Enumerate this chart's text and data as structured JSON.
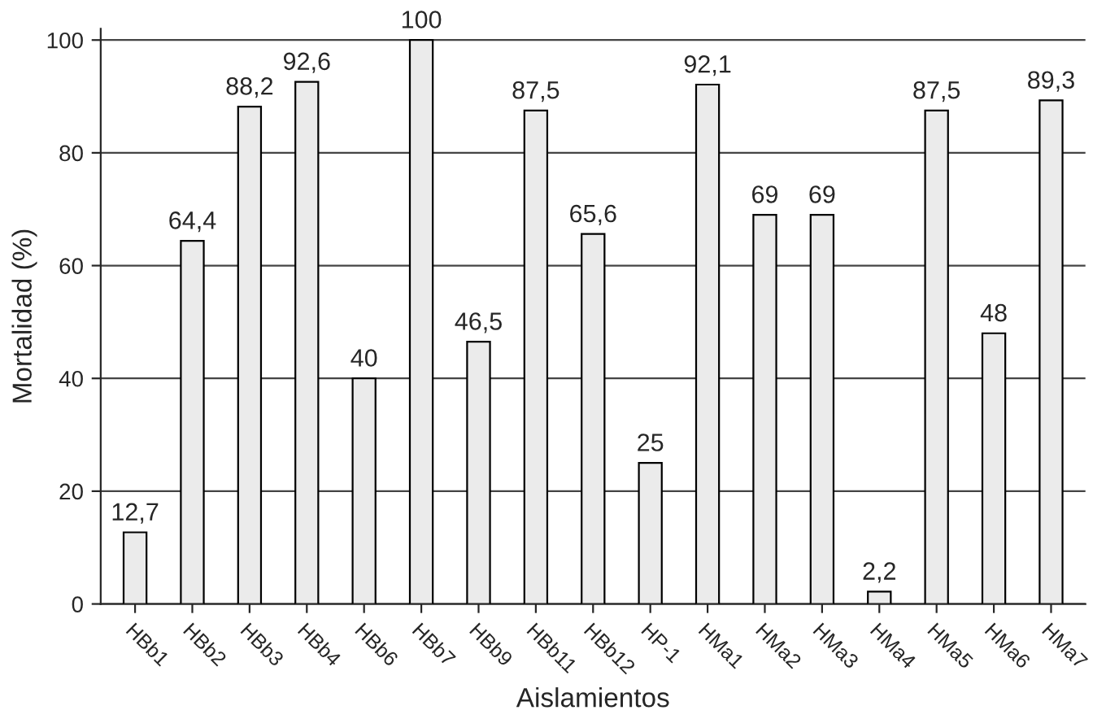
{
  "chart_data": {
    "type": "bar",
    "xlabel": "Aislamientos",
    "ylabel": "Mortalidad (%)",
    "categories": [
      "HBb1",
      "HBb2",
      "HBb3",
      "HBb4",
      "HBb6",
      "HBb7",
      "HBb9",
      "HBb11",
      "HBb12",
      "HP-1",
      "HMa1",
      "HMa2",
      "HMa3",
      "HMa4",
      "HMa5",
      "HMa6",
      "HMa7"
    ],
    "values": [
      12.7,
      64.4,
      88.2,
      92.6,
      40,
      100,
      46.5,
      87.5,
      65.6,
      25,
      92.1,
      69,
      69,
      2.2,
      87.5,
      48,
      89.3
    ],
    "value_labels": [
      "12,7",
      "64,4",
      "88,2",
      "92,6",
      "40",
      "100",
      "46,5",
      "87,5",
      "65,6",
      "25",
      "92,1",
      "69",
      "69",
      "2,2",
      "87,5",
      "48",
      "89,3"
    ],
    "color": "#ebebeb",
    "ylim": [
      0,
      102
    ],
    "yticks": [
      0,
      20,
      40,
      60,
      80,
      100
    ],
    "grid": "y"
  }
}
